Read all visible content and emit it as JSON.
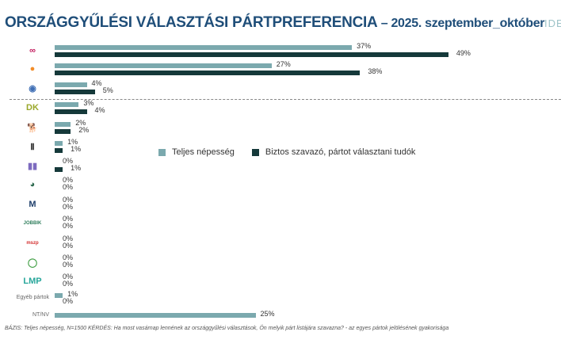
{
  "header": {
    "title": "ORSZÁGGYŰLÉSI VÁLASZTÁSI PÁRTPREFERENCIA",
    "subtitle": "– 2025. szeptember_október",
    "brand": "IDE"
  },
  "chart_data": {
    "type": "bar",
    "orientation": "horizontal",
    "title": "ORSZÁGGYŰLÉSI VÁLASZTÁSI PÁRTPREFERENCIA – 2025. szeptember_október",
    "xlim": [
      0,
      50
    ],
    "grid": false,
    "legend_position": "center",
    "series": [
      {
        "name": "Teljes népesség",
        "color": "#7ba9ae"
      },
      {
        "name": "Biztos szavazó, pártot választani tudók",
        "color": "#15393a"
      }
    ],
    "rows": [
      {
        "icon": "tisza-logo-icon",
        "label": "",
        "values": [
          37,
          49
        ]
      },
      {
        "icon": "fidesz-kdnp-logo-icon",
        "label": "",
        "values": [
          27,
          38
        ]
      },
      {
        "icon": "mi-hazank-logo-icon",
        "label": "",
        "values": [
          4,
          5
        ]
      },
      {
        "icon": "dk-logo-icon",
        "label": "",
        "values": [
          3,
          4
        ]
      },
      {
        "icon": "mkkp-dog-logo-icon",
        "label": "",
        "values": [
          2,
          2
        ]
      },
      {
        "icon": "bridge-party-logo-icon",
        "label": "",
        "values": [
          1,
          1
        ]
      },
      {
        "icon": "bars-party-logo-icon",
        "label": "",
        "values": [
          0,
          1
        ]
      },
      {
        "icon": "round-party-logo-icon",
        "label": "",
        "values": [
          0,
          0
        ]
      },
      {
        "icon": "m-party-logo-icon",
        "label": "",
        "values": [
          0,
          0
        ]
      },
      {
        "icon": "jobbik-logo-icon",
        "label": "",
        "values": [
          0,
          0
        ]
      },
      {
        "icon": "mszp-logo-icon",
        "label": "",
        "values": [
          0,
          0
        ]
      },
      {
        "icon": "lmp-logo-icon",
        "label": "",
        "values": [
          0,
          0
        ]
      },
      {
        "icon": "lmp-green-logo-icon",
        "label": "",
        "values": [
          0,
          0
        ]
      },
      {
        "icon": "",
        "label": "Egyéb pártok",
        "values": [
          1,
          0
        ]
      },
      {
        "icon": "",
        "label": "NT/NV",
        "values": [
          25,
          null
        ]
      }
    ]
  },
  "footnote": "BÁZIS: Teljes népesség, N=1500  KÉRDÉS:  Ha most vasárnap lennének az országgyűlési választások, Ön melyik párt listájára szavazna? - az egyes pártok jelölésének gyakorisága"
}
